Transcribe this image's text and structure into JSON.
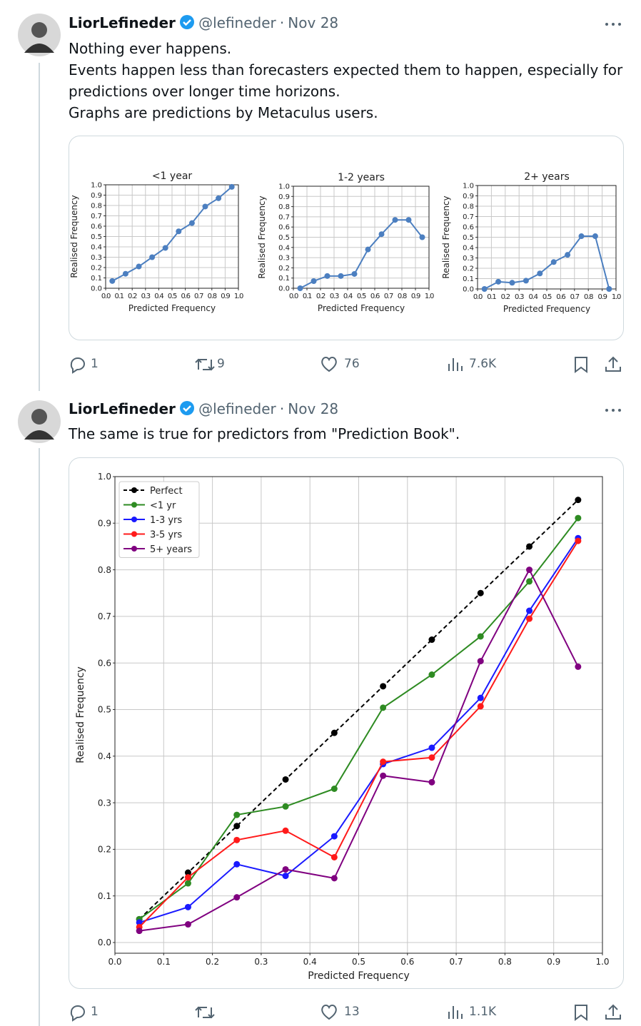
{
  "tweets": [
    {
      "author": "LiorLefineder",
      "handle": "@lefineder",
      "separator": "·",
      "date": "Nov 28",
      "text": [
        "Nothing ever happens.",
        "Events happen less than forecasters expected them to happen, especially for predictions over longer time horizons.",
        "Graphs are predictions by Metaculus users."
      ],
      "charts": [
        {
          "type": "line",
          "title": "<1 year",
          "xlabel": "Predicted Frequency",
          "ylabel": "Realised Frequency",
          "color": "#4c7fc0",
          "x": [
            0.05,
            0.15,
            0.25,
            0.35,
            0.45,
            0.55,
            0.65,
            0.75,
            0.85,
            0.95
          ],
          "values": [
            0.07,
            0.14,
            0.21,
            0.3,
            0.39,
            0.55,
            0.63,
            0.79,
            0.87,
            0.98
          ],
          "xlim": [
            0,
            1
          ],
          "ylim": [
            0,
            1
          ],
          "grid": true,
          "xticks": [
            {
              "value": 0,
              "label": "0.0"
            },
            0.1,
            0.2,
            0.3,
            0.4,
            0.5,
            0.6,
            0.7,
            0.8,
            0.9,
            {
              "value": 1,
              "label": "1.0"
            }
          ],
          "yticks": [
            {
              "value": 0,
              "label": "0.0"
            },
            0.1,
            0.2,
            0.3,
            0.4,
            0.5,
            0.6,
            0.7,
            0.8,
            0.9,
            {
              "value": 1,
              "label": "1.0"
            }
          ]
        },
        {
          "type": "line",
          "title": "1-2 years",
          "xlabel": "Predicted Frequency",
          "ylabel": "Realised Frequency",
          "color": "#4c7fc0",
          "x": [
            0.05,
            0.15,
            0.25,
            0.35,
            0.45,
            0.55,
            0.65,
            0.75,
            0.85,
            0.95
          ],
          "values": [
            0.0,
            0.07,
            0.12,
            0.12,
            0.14,
            0.38,
            0.53,
            0.67,
            0.67,
            0.5
          ],
          "xlim": [
            0,
            1
          ],
          "ylim": [
            0,
            1
          ],
          "grid": true,
          "xticks": [
            {
              "value": 0,
              "label": "0.0"
            },
            0.1,
            0.2,
            0.3,
            0.4,
            0.5,
            0.6,
            0.7,
            0.8,
            0.9,
            {
              "value": 1,
              "label": "1.0"
            }
          ],
          "yticks": [
            {
              "value": 0,
              "label": "0.0"
            },
            0.1,
            0.2,
            0.3,
            0.4,
            0.5,
            0.6,
            0.7,
            0.8,
            0.9,
            {
              "value": 1,
              "label": "1.0"
            }
          ]
        },
        {
          "type": "line",
          "title": "2+ years",
          "xlabel": "Predicted Frequency",
          "ylabel": "Realised Frequency",
          "color": "#4c7fc0",
          "x": [
            0.05,
            0.15,
            0.25,
            0.35,
            0.45,
            0.55,
            0.65,
            0.75,
            0.85,
            0.95
          ],
          "values": [
            0.0,
            0.07,
            0.06,
            0.08,
            0.15,
            0.26,
            0.33,
            0.51,
            0.51,
            0.0
          ],
          "xlim": [
            0,
            1
          ],
          "ylim": [
            0,
            1
          ],
          "grid": true,
          "xticks": [
            {
              "value": 0,
              "label": "0.0"
            },
            0.1,
            0.2,
            0.3,
            0.4,
            0.5,
            0.6,
            0.7,
            0.8,
            0.9,
            {
              "value": 1,
              "label": "1.0"
            }
          ],
          "yticks": [
            {
              "value": 0,
              "label": "0.0"
            },
            0.1,
            0.2,
            0.3,
            0.4,
            0.5,
            0.6,
            0.7,
            0.8,
            0.9,
            {
              "value": 1,
              "label": "1.0"
            }
          ]
        }
      ],
      "actions": {
        "replies": "1",
        "reposts": "9",
        "likes": "76",
        "views": "7.6K"
      }
    },
    {
      "author": "LiorLefineder",
      "handle": "@lefineder",
      "separator": "·",
      "date": "Nov 28",
      "text": [
        "The same is true for predictors from \"Prediction Book\"."
      ],
      "charts": [
        {
          "type": "line",
          "xlabel": "Predicted Frequency",
          "ylabel": "Realised Frequency",
          "grid": true,
          "legend": "upper left",
          "x": [
            0.05,
            0.15,
            0.25,
            0.35,
            0.45,
            0.55,
            0.65,
            0.75,
            0.85,
            0.95
          ],
          "series": [
            {
              "name": "Perfect",
              "color": "#000000",
              "dash": true,
              "values": [
                0.05,
                0.15,
                0.25,
                0.35,
                0.45,
                0.55,
                0.65,
                0.75,
                0.85,
                0.95
              ]
            },
            {
              "name": "<1 yr",
              "color": "#2e8b22",
              "values": [
                0.05,
                0.127,
                0.274,
                0.292,
                0.33,
                0.504,
                0.575,
                0.657,
                0.775,
                0.911
              ]
            },
            {
              "name": "1-3 yrs",
              "color": "#1a1aff",
              "values": [
                0.043,
                0.076,
                0.168,
                0.143,
                0.228,
                0.383,
                0.418,
                0.525,
                0.712,
                0.868
              ]
            },
            {
              "name": "3-5 yrs",
              "color": "#ff1a1a",
              "values": [
                0.033,
                0.14,
                0.22,
                0.24,
                0.183,
                0.388,
                0.397,
                0.507,
                0.695,
                0.862
              ]
            },
            {
              "name": "5+ years",
              "color": "#800080",
              "values": [
                0.025,
                0.039,
                0.097,
                0.157,
                0.138,
                0.358,
                0.344,
                0.604,
                0.8,
                0.592
              ]
            }
          ],
          "xlim": [
            0,
            1
          ],
          "ylim": [
            -0.023,
            1
          ],
          "xticks": [
            {
              "value": 0,
              "label": "0.0"
            },
            0.1,
            0.2,
            0.3,
            0.4,
            0.5,
            0.6,
            0.7,
            0.8,
            0.9,
            {
              "value": 1,
              "label": "1.0"
            }
          ],
          "yticks": [
            {
              "value": 0,
              "label": "0.0"
            },
            0.1,
            0.2,
            0.3,
            0.4,
            0.5,
            0.6,
            0.7,
            0.8,
            0.9,
            {
              "value": 1,
              "label": "1.0"
            }
          ]
        }
      ],
      "actions": {
        "replies": "1",
        "likes": "13",
        "views": "1.1K"
      }
    }
  ]
}
